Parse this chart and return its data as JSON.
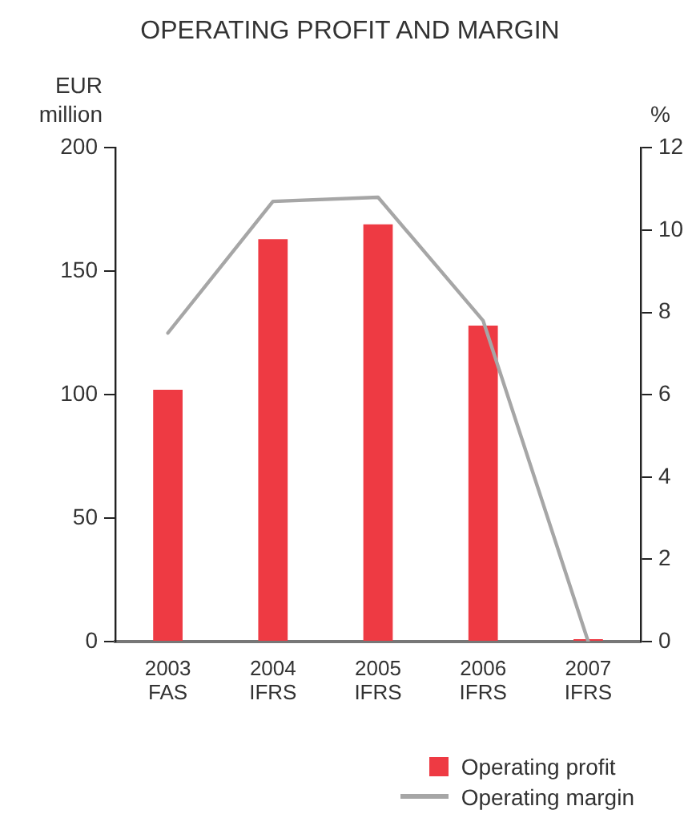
{
  "chart_data": {
    "type": "bar",
    "title": "OPERATING PROFIT AND MARGIN",
    "ylabel": "EUR\nmillion",
    "y2label": "%",
    "categories": [
      "2003\nFAS",
      "2004\nIFRS",
      "2005\nIFRS",
      "2006\nIFRS",
      "2007\nIFRS"
    ],
    "series": [
      {
        "name": "Operating profit",
        "color": "#ee3a43",
        "values": [
          102,
          163,
          169,
          128,
          1
        ]
      },
      {
        "name": "Operating margin",
        "type": "line",
        "axis": "y2",
        "color": "#a6a6a6",
        "values": [
          7.5,
          10.7,
          10.8,
          7.8,
          0
        ]
      }
    ],
    "ylim": [
      0,
      200
    ],
    "yticks": [
      0,
      50,
      100,
      150,
      200
    ],
    "y2lim": [
      0,
      12
    ],
    "y2ticks": [
      0,
      2,
      4,
      6,
      8,
      10,
      12
    ],
    "legend": "bottom right",
    "marker": "none",
    "line_style": "solid"
  }
}
